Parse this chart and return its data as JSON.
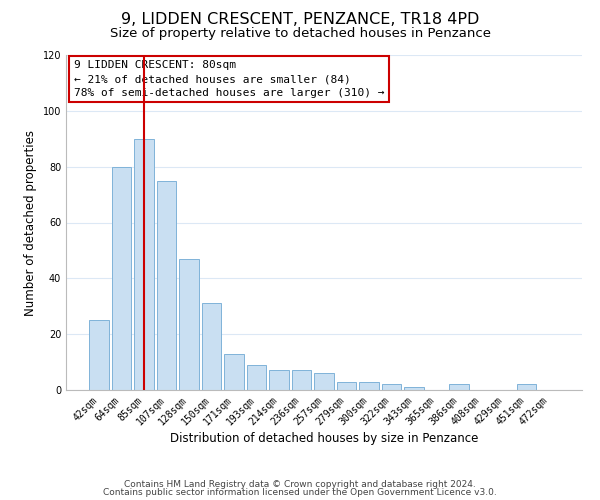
{
  "title": "9, LIDDEN CRESCENT, PENZANCE, TR18 4PD",
  "subtitle": "Size of property relative to detached houses in Penzance",
  "xlabel": "Distribution of detached houses by size in Penzance",
  "ylabel": "Number of detached properties",
  "bar_labels": [
    "42sqm",
    "64sqm",
    "85sqm",
    "107sqm",
    "128sqm",
    "150sqm",
    "171sqm",
    "193sqm",
    "214sqm",
    "236sqm",
    "257sqm",
    "279sqm",
    "300sqm",
    "322sqm",
    "343sqm",
    "365sqm",
    "386sqm",
    "408sqm",
    "429sqm",
    "451sqm",
    "472sqm"
  ],
  "bar_values": [
    25,
    80,
    90,
    75,
    47,
    31,
    13,
    9,
    7,
    7,
    6,
    3,
    3,
    2,
    1,
    0,
    2,
    0,
    0,
    2,
    0
  ],
  "bar_color": "#c9dff2",
  "bar_edge_color": "#7fb3d9",
  "vline_x": 2,
  "vline_color": "#cc0000",
  "box_edge_color": "#cc0000",
  "annotation_line1": "9 LIDDEN CRESCENT: 80sqm",
  "annotation_line2": "← 21% of detached houses are smaller (84)",
  "annotation_line3": "78% of semi-detached houses are larger (310) →",
  "ylim": [
    0,
    120
  ],
  "yticks": [
    0,
    20,
    40,
    60,
    80,
    100,
    120
  ],
  "footer_line1": "Contains HM Land Registry data © Crown copyright and database right 2024.",
  "footer_line2": "Contains public sector information licensed under the Open Government Licence v3.0.",
  "background_color": "#ffffff",
  "grid_color": "#dce8f5",
  "title_fontsize": 11.5,
  "subtitle_fontsize": 9.5,
  "axis_label_fontsize": 8.5,
  "tick_fontsize": 7,
  "annotation_fontsize": 8,
  "footer_fontsize": 6.5
}
